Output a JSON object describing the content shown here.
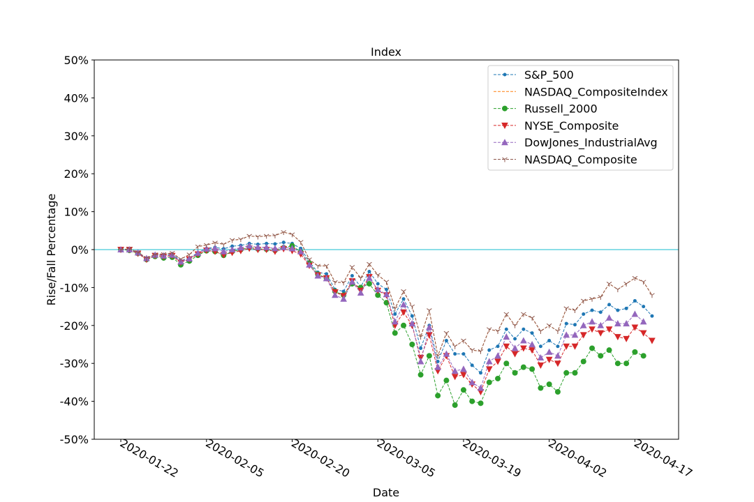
{
  "chart_data": {
    "type": "line",
    "title": "Index",
    "x_label": "Date",
    "y_label": "Rise/Fall Percentage",
    "categories": [
      "2020-01-22",
      null,
      null,
      null,
      null,
      null,
      null,
      null,
      null,
      null,
      "2020-02-05",
      null,
      null,
      null,
      null,
      null,
      null,
      null,
      null,
      null,
      "2020-02-20",
      null,
      null,
      null,
      null,
      null,
      null,
      null,
      null,
      null,
      "2020-03-05",
      null,
      null,
      null,
      null,
      null,
      null,
      null,
      null,
      null,
      "2020-03-19",
      null,
      null,
      null,
      null,
      null,
      null,
      null,
      null,
      null,
      "2020-04-02",
      null,
      null,
      null,
      null,
      null,
      null,
      null,
      null,
      null,
      "2020-04-17",
      null,
      null
    ],
    "ylim": [
      -50,
      50
    ],
    "yticks": [
      {
        "value": -50,
        "label": "-50%"
      },
      {
        "value": -40,
        "label": "-40%"
      },
      {
        "value": -30,
        "label": "-30%"
      },
      {
        "value": -20,
        "label": "-20%"
      },
      {
        "value": -10,
        "label": "-10%"
      },
      {
        "value": 0,
        "label": "0%"
      },
      {
        "value": 10,
        "label": "10%"
      },
      {
        "value": 20,
        "label": "20%"
      },
      {
        "value": 30,
        "label": "30%"
      },
      {
        "value": 40,
        "label": "40%"
      },
      {
        "value": 50,
        "label": "50%"
      }
    ],
    "hline": 0,
    "hline_color": "#17becf",
    "grid": false,
    "legend": "upper right",
    "series": [
      {
        "name": "S&P_500",
        "color": "#1f77b4",
        "marker": "point",
        "values": [
          0,
          0,
          -0.9,
          -2.4,
          -1.4,
          -1.5,
          -1.2,
          -2.9,
          -2.2,
          -0.8,
          0.3,
          0.6,
          0.2,
          0.9,
          1.1,
          1.6,
          1.4,
          1.6,
          1.5,
          1.9,
          1.6,
          0.3,
          -3.2,
          -6.0,
          -6.4,
          -10.5,
          -11.0,
          -6.9,
          -9.8,
          -5.8,
          -9.0,
          -10.5,
          -17.0,
          -13.0,
          -17.5,
          -26.0,
          -20.0,
          -29.5,
          -24.0,
          -27.5,
          -27.5,
          -30.5,
          -32.5,
          -26.5,
          -25.5,
          -21.0,
          -23.5,
          -21.0,
          -22.0,
          -25.5,
          -24.0,
          -25.5,
          -19.5,
          -19.8,
          -17.0,
          -16.0,
          -16.5,
          -14.5,
          -16.0,
          -15.5,
          -13.5,
          -15.0,
          -17.5
        ]
      },
      {
        "name": "NASDAQ_CompositeIndex",
        "color": "#ff7f0e",
        "marker": "none",
        "values": [
          0,
          0.2,
          -0.7,
          -2.2,
          -1.3,
          -1.2,
          -0.9,
          -2.5,
          -1.3,
          0.8,
          1.2,
          1.8,
          1.4,
          2.5,
          2.7,
          3.6,
          3.4,
          3.6,
          3.7,
          4.6,
          4.0,
          2.0,
          -2.6,
          -4.3,
          -4.3,
          -8.6,
          -8.7,
          -4.6,
          -7.5,
          -3.8,
          -6.7,
          -8.5,
          -15.5,
          -11.0,
          -15.0,
          -23.0,
          -16.0,
          -28.0,
          -22.0,
          -25.5,
          -24.0,
          -26.5,
          -26.8,
          -21.0,
          -21.5,
          -17.0,
          -20.0,
          -17.0,
          -18.0,
          -21.5,
          -20.0,
          -21.5,
          -15.5,
          -16.0,
          -13.5,
          -13.0,
          -12.5,
          -9.0,
          -10.5,
          -9.0,
          -7.5,
          -8.5,
          -12.0
        ]
      },
      {
        "name": "Russell_2000",
        "color": "#2ca02c",
        "marker": "circle",
        "values": [
          0,
          -0.2,
          -1.0,
          -2.6,
          -1.8,
          -2.2,
          -2.0,
          -4.0,
          -3.0,
          -1.5,
          -0.3,
          -0.5,
          -1.5,
          -0.5,
          0.0,
          0.6,
          0.2,
          0.1,
          -0.2,
          0.5,
          1.0,
          -0.6,
          -3.6,
          -6.5,
          -7.5,
          -11.0,
          -12.0,
          -9.0,
          -10.0,
          -9.0,
          -12.0,
          -14.0,
          -22.0,
          -20.0,
          -25.0,
          -33.0,
          -28.0,
          -38.5,
          -34.5,
          -41.0,
          -37.0,
          -40.0,
          -40.5,
          -35.0,
          -34.0,
          -30.0,
          -32.5,
          -31.0,
          -31.5,
          -36.5,
          -35.5,
          -37.5,
          -32.5,
          -32.5,
          -29.5,
          -26.0,
          -28.0,
          -26.5,
          -30.0,
          -30.0,
          -27.0,
          -28.0,
          null
        ]
      },
      {
        "name": "NYSE_Composite",
        "color": "#d62728",
        "marker": "triangle-down",
        "values": [
          0,
          0,
          -1.0,
          -2.6,
          -1.6,
          -1.8,
          -1.6,
          -3.4,
          -2.5,
          -1.2,
          -0.2,
          -0.5,
          -1.4,
          -0.8,
          -0.3,
          0.3,
          0.0,
          0.0,
          -0.5,
          0.2,
          -0.3,
          -1.2,
          -4.2,
          -6.7,
          -7.5,
          -11.2,
          -12.2,
          -8.3,
          -10.8,
          -7.2,
          -10.8,
          -12.0,
          -20.0,
          -16.5,
          -20.0,
          -28.5,
          -22.5,
          -32.0,
          -28.0,
          -33.5,
          -33.0,
          -35.5,
          -37.5,
          -31.5,
          -29.5,
          -25.5,
          -27.5,
          -26.0,
          -26.5,
          -30.5,
          -29.0,
          -30.0,
          -25.5,
          -25.5,
          -22.5,
          -21.0,
          -22.0,
          -21.0,
          -23.0,
          -23.5,
          -20.5,
          -22.0,
          -24.0
        ]
      },
      {
        "name": "DowJones_IndustrialAvg",
        "color": "#9467bd",
        "marker": "triangle-up",
        "values": [
          0,
          0,
          -0.8,
          -2.3,
          -1.4,
          -1.6,
          -1.4,
          -3.2,
          -2.4,
          -0.9,
          0.2,
          0.3,
          -0.5,
          0.0,
          0.5,
          1.0,
          0.6,
          0.6,
          0.3,
          0.6,
          0.3,
          -0.5,
          -4.0,
          -6.9,
          -7.6,
          -12.0,
          -13.0,
          -8.5,
          -11.4,
          -7.5,
          -10.5,
          -11.8,
          -19.0,
          -14.5,
          -19.5,
          -29.5,
          -20.5,
          -31.0,
          -27.5,
          -32.0,
          -31.5,
          -35.0,
          -36.5,
          -29.5,
          -28.0,
          -23.0,
          -26.0,
          -24.0,
          -25.0,
          -28.5,
          -27.0,
          -28.0,
          -22.5,
          -22.5,
          -20.0,
          -19.0,
          -20.0,
          -18.0,
          -19.5,
          -19.5,
          -17.0,
          -19.0,
          null
        ]
      },
      {
        "name": "NASDAQ_Composite",
        "color": "#8c564b",
        "marker": "tri-down",
        "values": [
          0,
          0.2,
          -0.7,
          -2.2,
          -1.3,
          -1.2,
          -0.9,
          -2.5,
          -1.3,
          0.8,
          1.2,
          1.8,
          1.4,
          2.5,
          2.7,
          3.6,
          3.4,
          3.6,
          3.7,
          4.6,
          4.0,
          2.0,
          -2.6,
          -4.3,
          -4.3,
          -8.6,
          -8.7,
          -4.6,
          -7.5,
          -3.8,
          -6.7,
          -8.5,
          -15.5,
          -11.0,
          -15.0,
          -23.0,
          -16.0,
          -28.0,
          -22.0,
          -25.5,
          -24.0,
          -26.5,
          -26.8,
          -21.0,
          -21.5,
          -17.0,
          -20.0,
          -17.0,
          -18.0,
          -21.5,
          -20.0,
          -21.5,
          -15.5,
          -16.0,
          -13.5,
          -13.0,
          -12.5,
          -9.0,
          -10.5,
          -9.0,
          -7.5,
          -8.5,
          -12.0
        ]
      }
    ]
  }
}
